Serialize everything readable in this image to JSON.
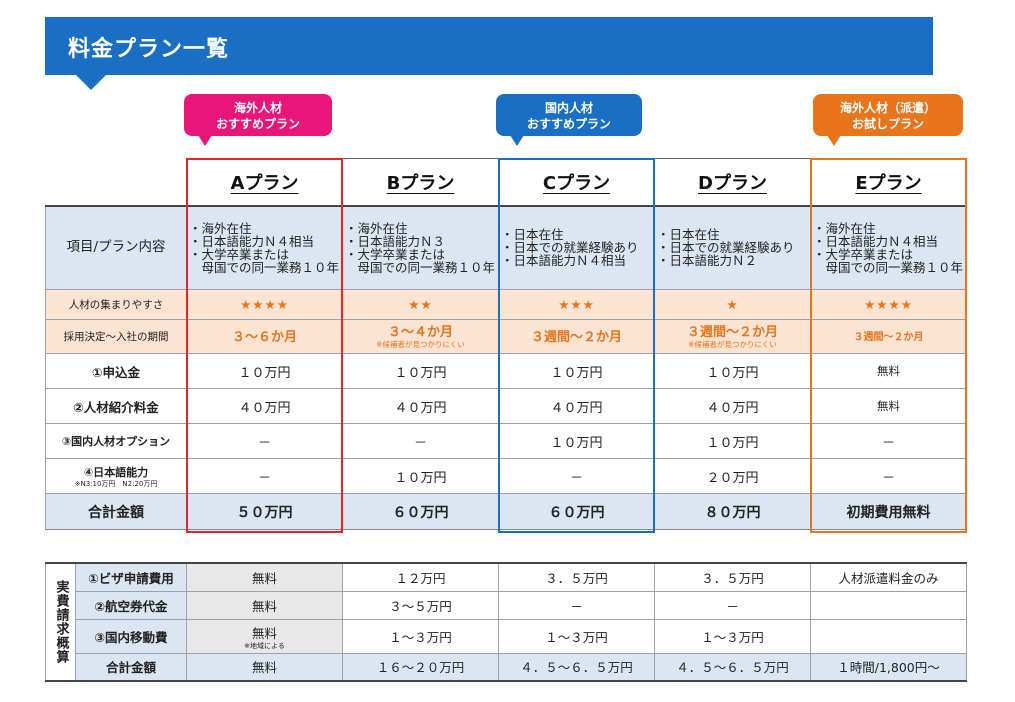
{
  "header": {
    "title": "料金プラン一覧"
  },
  "callouts": {
    "a": [
      "海外人材",
      "おすすめプラン"
    ],
    "c": [
      "国内人材",
      "おすすめプラン"
    ],
    "e": [
      "海外人材（派遣）",
      "お試しプラン"
    ]
  },
  "plans": [
    "Aプラン",
    "Bプラン",
    "Cプラン",
    "Dプラン",
    "Eプラン"
  ],
  "row_labels": {
    "conditions": "項目/プラン内容",
    "ease": "人材の集まりやすさ",
    "period": "採用決定～入社の期間",
    "fee1": "①申込金",
    "fee2": "②人材紹介料金",
    "fee3": "③国内人材オプション",
    "fee4": "④日本語能力",
    "fee4_note": "※N3:10万円　N2:20万円",
    "total": "合計金額"
  },
  "conditions": [
    [
      "・海外在住",
      "・日本語能力Ｎ４相当",
      "・大学卒業または",
      "　母国での同一業務１０年"
    ],
    [
      "・海外在住",
      "・日本語能力Ｎ３",
      "・大学卒業または",
      "　母国での同一業務１０年"
    ],
    [
      "・日本在住",
      "・日本での就業経験あり",
      "・日本語能力Ｎ４相当"
    ],
    [
      "・日本在住",
      "・日本での就業経験あり",
      "・日本語能力Ｎ２"
    ],
    [
      "・海外在住",
      "・日本語能力Ｎ４相当",
      "・大学卒業または",
      "　母国での同一業務１０年"
    ]
  ],
  "ease": [
    "★★★★",
    "★★",
    "★★★",
    "★",
    "★★★★"
  ],
  "period": [
    {
      "main": "３～６か月",
      "note": ""
    },
    {
      "main": "３～４か月",
      "note": "※候補者が見つかりにくい"
    },
    {
      "main": "３週間～２か月",
      "note": ""
    },
    {
      "main": "３週間～２か月",
      "note": "※候補者が見つかりにくい"
    },
    {
      "main": "３週間～２か月",
      "note": ""
    }
  ],
  "fee1": [
    "１０万円",
    "１０万円",
    "１０万円",
    "１０万円",
    "無料"
  ],
  "fee2": [
    "４０万円",
    "４０万円",
    "４０万円",
    "４０万円",
    "無料"
  ],
  "fee3": [
    "－",
    "－",
    "１０万円",
    "１０万円",
    "－"
  ],
  "fee4": [
    "－",
    "１０万円",
    "－",
    "２０万円",
    "－"
  ],
  "total": [
    "５０万円",
    "６０万円",
    "６０万円",
    "８０万円",
    "初期費用無料"
  ],
  "actual": {
    "side": "実費請求概算",
    "rows": [
      {
        "label": "①ビザ申請費用",
        "cells": [
          "無料",
          "１２万円",
          "３．５万円",
          "３．５万円",
          "人材派遣料金のみ"
        ]
      },
      {
        "label": "②航空券代金",
        "cells": [
          "無料",
          "３～５万円",
          "－",
          "－",
          ""
        ]
      },
      {
        "label": "③国内移動費",
        "cells": [
          "無料",
          "１～３万円",
          "１～３万円",
          "１～３万円",
          ""
        ],
        "note": "※地域による"
      },
      {
        "label": "合計金額",
        "cells": [
          "無料",
          "１６～２０万円",
          "４．５～６．５万円",
          "４．５～６．５万円",
          "１時間/1,800円～"
        ]
      }
    ]
  },
  "colors": {
    "banner": "#1a6fc4",
    "plan_a": "#e8242a",
    "plan_c": "#1a6fc4",
    "plan_e": "#e8741c",
    "callout_a": "#e8157a"
  }
}
